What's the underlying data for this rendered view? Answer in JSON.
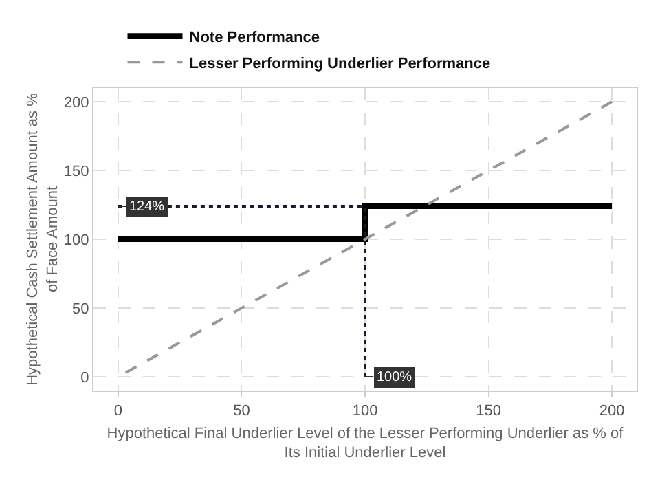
{
  "chart_data": {
    "type": "line",
    "xlabel": "Hypothetical Final Underlier Level of the Lesser Performing Underlier as % of Its Initial Underlier Level",
    "ylabel": "Hypothetical Cash Settlement Amount as % of Face Amount",
    "series": [
      {
        "name": "Note Performance",
        "color": "#000000",
        "line_style": "solid",
        "x": [
          0,
          100,
          100,
          200
        ],
        "values": [
          100,
          100,
          124,
          124
        ]
      },
      {
        "name": "Lesser Performing Underlier Performance",
        "color": "#999999",
        "line_style": "dashed",
        "x": [
          3,
          200
        ],
        "values": [
          3,
          200
        ]
      },
      {
        "color": "#1a1a2e",
        "line_style": "dotted",
        "x": [
          0,
          100
        ],
        "values": [
          124,
          124
        ]
      },
      {
        "color": "#1a1a2e",
        "line_style": "dotted",
        "x": [
          100,
          100
        ],
        "values": [
          0,
          124
        ]
      }
    ],
    "annotations": [
      {
        "text": "124%",
        "x": 0,
        "y": 124
      },
      {
        "text": "100%",
        "x": 100,
        "y": 0
      }
    ],
    "xlim": [
      -10,
      210
    ],
    "ylim": [
      -10,
      210
    ],
    "xticks": [
      0,
      50,
      100,
      150,
      200
    ],
    "yticks": [
      0,
      50,
      100,
      150,
      200
    ],
    "grid": true,
    "legend": "top"
  }
}
